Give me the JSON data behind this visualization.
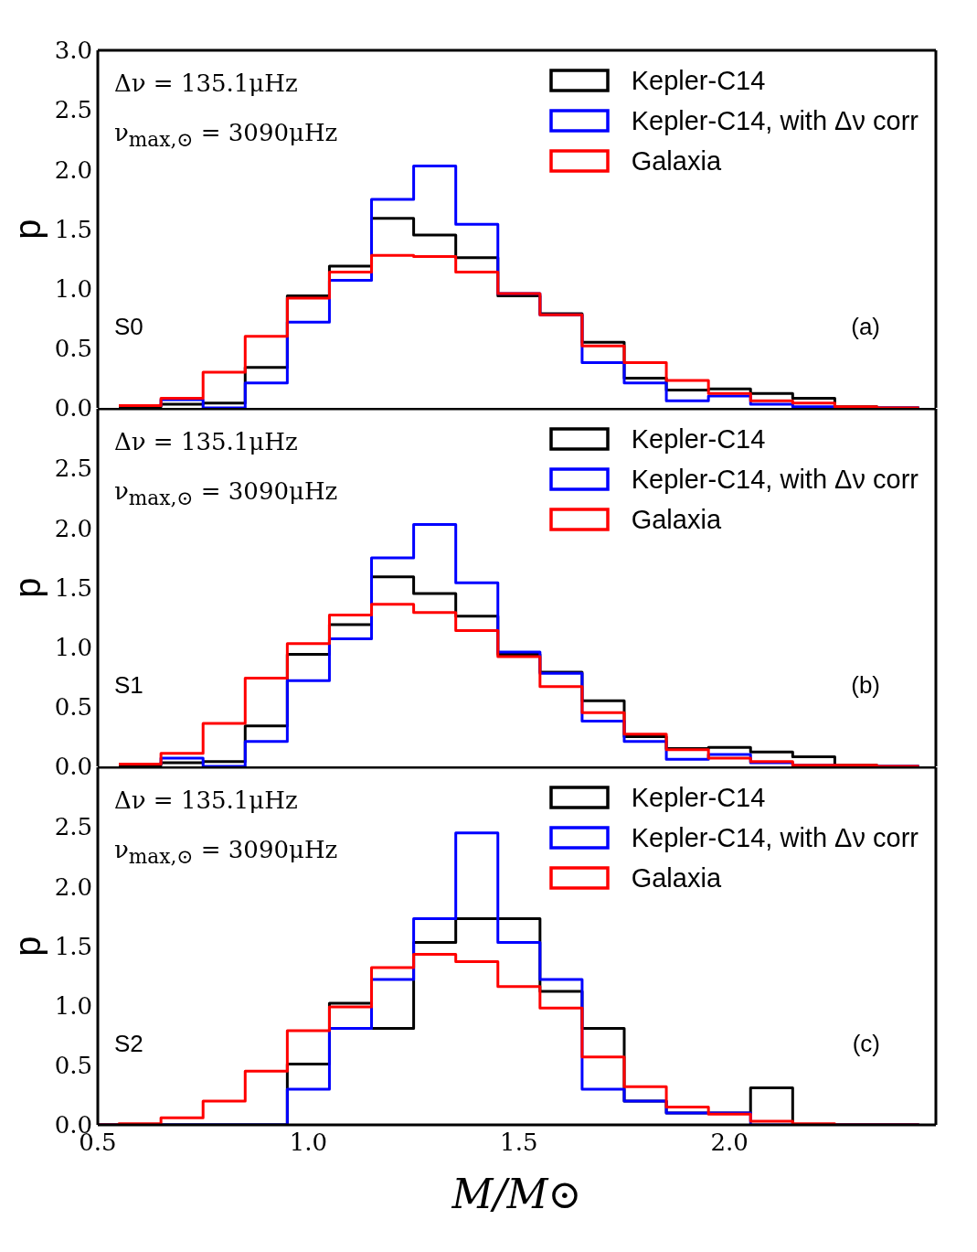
{
  "chart_data": [
    {
      "type": "histogram",
      "ylabel": "p",
      "bins": [
        0.55,
        0.65,
        0.75,
        0.85,
        0.95,
        1.05,
        1.15,
        1.25,
        1.35,
        1.45,
        1.55,
        1.65,
        1.75,
        1.85,
        1.95,
        2.05,
        2.15,
        2.25,
        2.35,
        2.45
      ],
      "series": [
        {
          "name": "Kepler-C14",
          "color": "#000000",
          "values": [
            0.01,
            0.03,
            0.04,
            0.34,
            0.94,
            1.19,
            1.59,
            1.45,
            1.26,
            0.94,
            0.79,
            0.55,
            0.25,
            0.15,
            0.16,
            0.12,
            0.08,
            0.01,
            0
          ]
        },
        {
          "name": "Kepler-C14, with Δν corr",
          "color": "#0000ff",
          "values": [
            0.02,
            0.07,
            0,
            0.21,
            0.72,
            1.07,
            1.75,
            2.03,
            1.54,
            0.96,
            0.78,
            0.38,
            0.21,
            0.06,
            0.1,
            0.03,
            0.01,
            0,
            0
          ]
        },
        {
          "name": "Galaxia",
          "color": "#ff0000",
          "values": [
            0.02,
            0.08,
            0.3,
            0.6,
            0.92,
            1.14,
            1.28,
            1.27,
            1.14,
            0.96,
            0.78,
            0.52,
            0.38,
            0.23,
            0.12,
            0.06,
            0.04,
            0.01,
            0
          ]
        }
      ],
      "xlim": [
        0.5,
        2.49
      ],
      "xticks": [
        {
          "value": 0.5,
          "label": null
        },
        {
          "value": 1,
          "label": null
        },
        {
          "value": 1.5,
          "label": null
        },
        {
          "value": 2,
          "label": null
        }
      ],
      "ylim": [
        0,
        3
      ],
      "yticks": [
        {
          "value": 0,
          "label": "0.0"
        },
        0.5,
        {
          "value": 1,
          "label": "1.0"
        },
        1.5,
        {
          "value": 2,
          "label": "2.0"
        },
        2.5,
        {
          "value": 3,
          "label": "3.0"
        }
      ],
      "tick_labels": "y",
      "legend": "top right",
      "annotations": [
        "Δν = 135.1μHz",
        "ν$_{max,⊙}$ = 3090μHz",
        "S0",
        "(a)"
      ]
    },
    {
      "type": "histogram",
      "ylabel": "p",
      "bins": [
        0.55,
        0.65,
        0.75,
        0.85,
        0.95,
        1.05,
        1.15,
        1.25,
        1.35,
        1.45,
        1.55,
        1.65,
        1.75,
        1.85,
        1.95,
        2.05,
        2.15,
        2.25,
        2.35,
        2.45
      ],
      "series": [
        {
          "name": "Kepler-C14",
          "color": "#000000",
          "values": [
            0.01,
            0.03,
            0.04,
            0.34,
            0.94,
            1.19,
            1.59,
            1.45,
            1.26,
            0.94,
            0.79,
            0.55,
            0.25,
            0.15,
            0.16,
            0.12,
            0.08,
            0.01,
            0
          ]
        },
        {
          "name": "Kepler-C14, with Δν corr",
          "color": "#0000ff",
          "values": [
            0.02,
            0.07,
            0,
            0.21,
            0.72,
            1.07,
            1.75,
            2.03,
            1.54,
            0.96,
            0.78,
            0.38,
            0.21,
            0.06,
            0.1,
            0.03,
            0.01,
            0,
            0
          ]
        },
        {
          "name": "Galaxia",
          "color": "#ff0000",
          "values": [
            0.02,
            0.11,
            0.36,
            0.74,
            1.03,
            1.27,
            1.36,
            1.29,
            1.14,
            0.92,
            0.67,
            0.45,
            0.27,
            0.14,
            0.07,
            0.04,
            0.01,
            0.01,
            0
          ]
        }
      ],
      "xlim": [
        0.5,
        2.49
      ],
      "xticks": [
        {
          "value": 0.5,
          "label": null
        },
        {
          "value": 1,
          "label": null
        },
        {
          "value": 1.5,
          "label": null
        },
        {
          "value": 2,
          "label": null
        }
      ],
      "ylim": [
        0,
        3
      ],
      "yticks": [
        {
          "value": 0,
          "label": "0.0"
        },
        0.5,
        {
          "value": 1,
          "label": "1.0"
        },
        1.5,
        {
          "value": 2,
          "label": "2.0"
        },
        2.5,
        {
          "value": 3,
          "label": null
        }
      ],
      "tick_labels": "y",
      "legend": "top right",
      "annotations": [
        "Δν = 135.1μHz",
        "ν$_{max,⊙}$ = 3090μHz",
        "S1",
        "(b)"
      ]
    },
    {
      "type": "histogram",
      "xlabel": "M/M⊙",
      "ylabel": "p",
      "bins": [
        0.45,
        0.55,
        0.65,
        0.75,
        0.85,
        0.95,
        1.05,
        1.15,
        1.25,
        1.35,
        1.45,
        1.55,
        1.65,
        1.75,
        1.85,
        1.95,
        2.05,
        2.15,
        2.25,
        2.35,
        2.45
      ],
      "series": [
        {
          "name": "Kepler-C14",
          "color": "#000000",
          "values": [
            0,
            0,
            0,
            0,
            0,
            0.51,
            1.02,
            0.81,
            1.53,
            1.73,
            1.73,
            1.12,
            0.81,
            0.2,
            0.1,
            0.1,
            0.31,
            0,
            0,
            0
          ]
        },
        {
          "name": "Kepler-C14, with Δν corr",
          "color": "#0000ff",
          "values": [
            0,
            0,
            0,
            0,
            0,
            0.3,
            0.81,
            1.22,
            1.73,
            2.45,
            1.53,
            1.22,
            0.3,
            0.2,
            0.1,
            0.1,
            0,
            0,
            0,
            0
          ]
        },
        {
          "name": "Galaxia",
          "color": "#ff0000",
          "values": [
            0,
            0.01,
            0.06,
            0.2,
            0.45,
            0.79,
            0.99,
            1.32,
            1.43,
            1.37,
            1.16,
            0.98,
            0.57,
            0.32,
            0.15,
            0.09,
            0.03,
            0.01,
            0,
            0
          ]
        }
      ],
      "xlim": [
        0.5,
        2.49
      ],
      "xticks": [
        0.5,
        {
          "value": 1,
          "label": "1.0"
        },
        1.5,
        {
          "value": 2,
          "label": "2.0"
        }
      ],
      "ylim": [
        0,
        3
      ],
      "yticks": [
        {
          "value": 0,
          "label": "0.0"
        },
        0.5,
        {
          "value": 1,
          "label": "1.0"
        },
        1.5,
        {
          "value": 2,
          "label": "2.0"
        },
        2.5,
        {
          "value": 3,
          "label": null
        }
      ],
      "legend": "top right",
      "annotations": [
        "Δν = 135.1μHz",
        "ν$_{max,⊙}$ = 3090μHz",
        "S2",
        "(c)"
      ]
    }
  ]
}
